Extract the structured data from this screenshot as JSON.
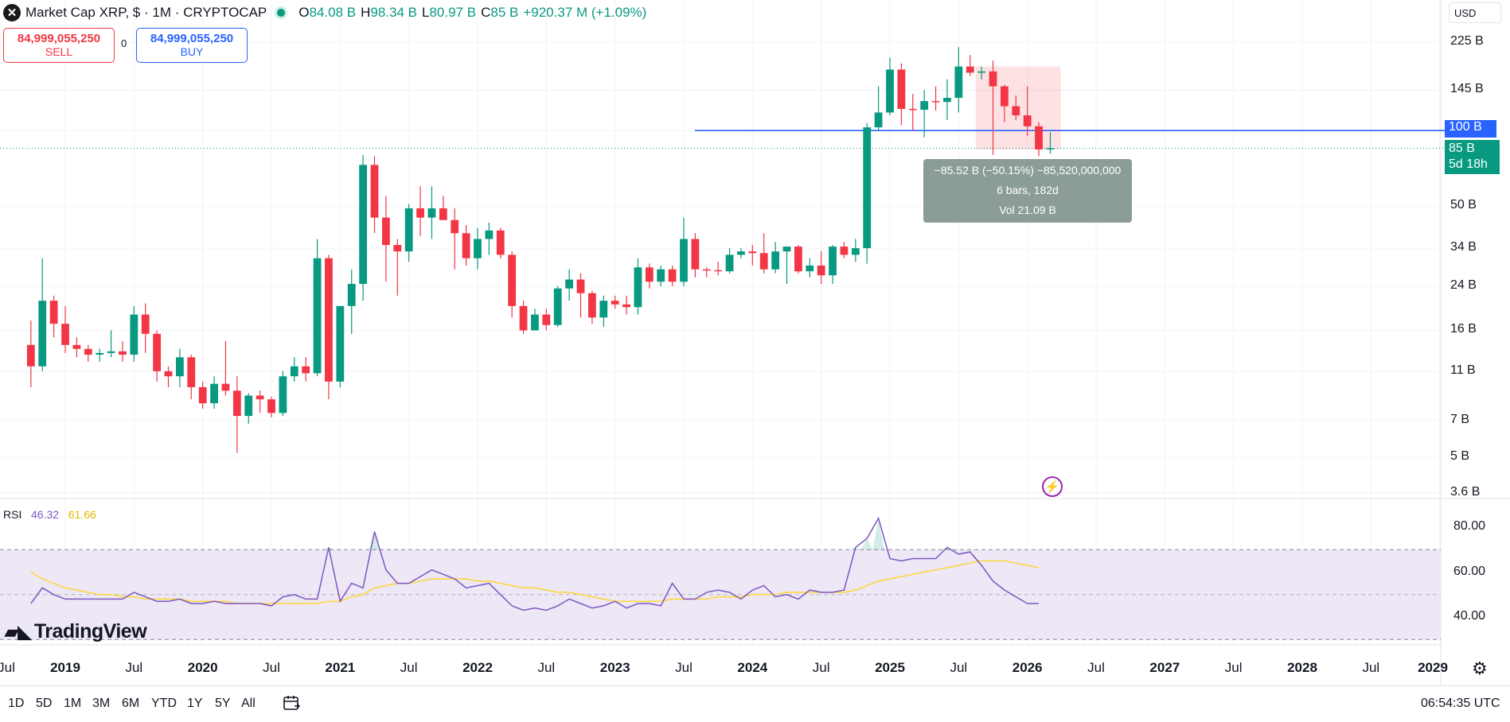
{
  "header": {
    "logo_glyph": "✕",
    "title": "Market Cap XRP, $ · 1M · CRYPTOCAP",
    "ohlc": [
      {
        "label": "O",
        "value": "84.08 B"
      },
      {
        "label": "H",
        "value": "98.34 B"
      },
      {
        "label": "L",
        "value": "80.97 B"
      },
      {
        "label": "C",
        "value": "85 B"
      }
    ],
    "change": "+920.37 M (+1.09%)",
    "currency": "USD"
  },
  "trade": {
    "sell_price": "84,999,055,250",
    "sell_label": "SELL",
    "buy_price": "84,999,055,250",
    "buy_label": "BUY",
    "spread": "0"
  },
  "measure": {
    "line1": "−85.52 B (−50.15%) −85,520,000,000",
    "line2": "6 bars, 182d",
    "line3": "Vol 21.09 B"
  },
  "price_axis": {
    "labels": [
      "225 B",
      "145 B",
      "50 B",
      "34 B",
      "24 B",
      "16 B",
      "11 B",
      "7 B",
      "5 B",
      "3.6 B"
    ],
    "level_tag": "100 B",
    "last_tag": "85 B",
    "countdown": "5d 18h"
  },
  "rsi": {
    "label": "RSI",
    "value": "46.32",
    "ma_value": "61.66",
    "axis": [
      "80.00",
      "60.00",
      "40.00"
    ],
    "upper_band": 70,
    "lower_band": 30,
    "mid_band": 50
  },
  "time_axis": [
    {
      "text": "Jul",
      "bold": false
    },
    {
      "text": "2019",
      "bold": true
    },
    {
      "text": "Jul",
      "bold": false
    },
    {
      "text": "2020",
      "bold": true
    },
    {
      "text": "Jul",
      "bold": false
    },
    {
      "text": "2021",
      "bold": true
    },
    {
      "text": "Jul",
      "bold": false
    },
    {
      "text": "2022",
      "bold": true
    },
    {
      "text": "Jul",
      "bold": false
    },
    {
      "text": "2023",
      "bold": true
    },
    {
      "text": "Jul",
      "bold": false
    },
    {
      "text": "2024",
      "bold": true
    },
    {
      "text": "Jul",
      "bold": false
    },
    {
      "text": "2025",
      "bold": true
    },
    {
      "text": "Jul",
      "bold": false
    },
    {
      "text": "2026",
      "bold": true
    },
    {
      "text": "Jul",
      "bold": false
    },
    {
      "text": "2027",
      "bold": true
    },
    {
      "text": "Jul",
      "bold": false
    },
    {
      "text": "2028",
      "bold": true
    },
    {
      "text": "Jul",
      "bold": false
    },
    {
      "text": "2029",
      "bold": true
    }
  ],
  "branding": "TradingView",
  "ranges": [
    "1D",
    "5D",
    "1M",
    "3M",
    "6M",
    "YTD",
    "1Y",
    "5Y",
    "All"
  ],
  "clock": "06:54:35 UTC",
  "colors": {
    "up": "#089981",
    "down": "#f23645",
    "rsi_line": "#7e57c2",
    "rsi_ma": "#fdd835",
    "level_line": "#2962ff",
    "rsi_band": "#ede7f6"
  },
  "chart_data": {
    "type": "candlestick",
    "interval": "1M",
    "scale": "log",
    "ylim_billions": [
      3.6,
      225
    ],
    "horizontal_line": 100,
    "candles_billions": [
      {
        "t": "2018-10",
        "o": 14,
        "h": 17.5,
        "l": 9.5,
        "c": 11.5
      },
      {
        "t": "2018-11",
        "o": 11.5,
        "h": 31,
        "l": 11,
        "c": 21
      },
      {
        "t": "2018-12",
        "o": 21,
        "h": 22,
        "l": 15,
        "c": 17
      },
      {
        "t": "2019-01",
        "o": 17,
        "h": 20,
        "l": 13,
        "c": 14
      },
      {
        "t": "2019-02",
        "o": 14,
        "h": 15,
        "l": 12.5,
        "c": 13.5
      },
      {
        "t": "2019-03",
        "o": 13.5,
        "h": 14,
        "l": 12,
        "c": 12.8
      },
      {
        "t": "2019-04",
        "o": 12.8,
        "h": 13.5,
        "l": 12,
        "c": 13
      },
      {
        "t": "2019-05",
        "o": 13,
        "h": 16,
        "l": 12.5,
        "c": 13.2
      },
      {
        "t": "2019-06",
        "o": 13.2,
        "h": 14.5,
        "l": 12,
        "c": 12.8
      },
      {
        "t": "2019-07",
        "o": 12.8,
        "h": 20,
        "l": 12,
        "c": 18.5
      },
      {
        "t": "2019-08",
        "o": 18.5,
        "h": 20.5,
        "l": 13,
        "c": 15.5
      },
      {
        "t": "2019-09",
        "o": 15.5,
        "h": 16,
        "l": 10,
        "c": 11
      },
      {
        "t": "2019-10",
        "o": 11,
        "h": 11.5,
        "l": 9.5,
        "c": 10.5
      },
      {
        "t": "2019-11",
        "o": 10.5,
        "h": 13.5,
        "l": 9.5,
        "c": 12.5
      },
      {
        "t": "2019-12",
        "o": 12.5,
        "h": 12.8,
        "l": 8.5,
        "c": 9.5
      },
      {
        "t": "2020-01",
        "o": 9.5,
        "h": 10,
        "l": 7.8,
        "c": 8.2
      },
      {
        "t": "2020-02",
        "o": 8.2,
        "h": 10.5,
        "l": 7.8,
        "c": 9.8
      },
      {
        "t": "2020-03",
        "o": 9.8,
        "h": 14.5,
        "l": 8.8,
        "c": 9.2
      },
      {
        "t": "2020-04",
        "o": 9.2,
        "h": 10.5,
        "l": 5.2,
        "c": 7.3
      },
      {
        "t": "2020-05",
        "o": 7.3,
        "h": 9,
        "l": 6.8,
        "c": 8.8
      },
      {
        "t": "2020-06",
        "o": 8.8,
        "h": 9.2,
        "l": 7.5,
        "c": 8.5
      },
      {
        "t": "2020-07",
        "o": 8.5,
        "h": 8.7,
        "l": 7.2,
        "c": 7.5
      },
      {
        "t": "2020-08",
        "o": 7.5,
        "h": 11,
        "l": 7.3,
        "c": 10.5
      },
      {
        "t": "2020-09",
        "o": 10.5,
        "h": 12.5,
        "l": 10,
        "c": 11.5
      },
      {
        "t": "2020-10",
        "o": 11.5,
        "h": 12.5,
        "l": 10,
        "c": 10.8
      },
      {
        "t": "2020-11",
        "o": 10.8,
        "h": 37,
        "l": 10.5,
        "c": 31
      },
      {
        "t": "2020-12",
        "o": 31,
        "h": 32,
        "l": 8.5,
        "c": 10
      },
      {
        "t": "2021-01",
        "o": 10,
        "h": 14.5,
        "l": 9.5,
        "c": 20
      },
      {
        "t": "2021-02",
        "o": 20,
        "h": 28,
        "l": 15.5,
        "c": 24.5
      },
      {
        "t": "2021-03",
        "o": 24.5,
        "h": 80,
        "l": 21,
        "c": 73
      },
      {
        "t": "2021-04",
        "o": 73,
        "h": 79,
        "l": 39,
        "c": 45
      },
      {
        "t": "2021-05",
        "o": 45,
        "h": 55,
        "l": 25,
        "c": 35
      },
      {
        "t": "2021-06",
        "o": 35,
        "h": 37,
        "l": 22,
        "c": 33
      },
      {
        "t": "2021-07",
        "o": 33,
        "h": 51,
        "l": 30,
        "c": 49
      },
      {
        "t": "2021-08",
        "o": 49,
        "h": 60,
        "l": 38,
        "c": 45
      },
      {
        "t": "2021-09",
        "o": 45,
        "h": 60,
        "l": 37,
        "c": 49
      },
      {
        "t": "2021-10",
        "o": 49,
        "h": 55,
        "l": 46,
        "c": 44
      },
      {
        "t": "2021-11",
        "o": 44,
        "h": 49,
        "l": 28,
        "c": 39
      },
      {
        "t": "2021-12",
        "o": 39,
        "h": 42,
        "l": 29,
        "c": 31
      },
      {
        "t": "2022-01",
        "o": 31,
        "h": 41,
        "l": 28,
        "c": 37
      },
      {
        "t": "2022-02",
        "o": 37,
        "h": 43,
        "l": 32,
        "c": 40
      },
      {
        "t": "2022-03",
        "o": 40,
        "h": 41,
        "l": 31,
        "c": 32
      },
      {
        "t": "2022-04",
        "o": 32,
        "h": 33,
        "l": 18,
        "c": 20
      },
      {
        "t": "2022-05",
        "o": 20,
        "h": 21,
        "l": 15.5,
        "c": 16
      },
      {
        "t": "2022-06",
        "o": 16,
        "h": 19.5,
        "l": 16,
        "c": 18.5
      },
      {
        "t": "2022-07",
        "o": 18.5,
        "h": 19.5,
        "l": 16,
        "c": 16.8
      },
      {
        "t": "2022-08",
        "o": 16.8,
        "h": 24,
        "l": 16.5,
        "c": 23.5
      },
      {
        "t": "2022-09",
        "o": 23.5,
        "h": 28,
        "l": 21,
        "c": 25.5
      },
      {
        "t": "2022-10",
        "o": 25.5,
        "h": 27,
        "l": 18,
        "c": 22.5
      },
      {
        "t": "2022-11",
        "o": 22.5,
        "h": 23,
        "l": 17,
        "c": 18
      },
      {
        "t": "2022-12",
        "o": 18,
        "h": 22,
        "l": 16.5,
        "c": 21
      },
      {
        "t": "2023-01",
        "o": 21,
        "h": 22,
        "l": 19.5,
        "c": 20.3
      },
      {
        "t": "2023-02",
        "o": 20.3,
        "h": 22,
        "l": 18.5,
        "c": 19.8
      },
      {
        "t": "2023-03",
        "o": 19.8,
        "h": 31,
        "l": 18.5,
        "c": 28.5
      },
      {
        "t": "2023-04",
        "o": 28.5,
        "h": 29.5,
        "l": 23.5,
        "c": 25
      },
      {
        "t": "2023-05",
        "o": 25,
        "h": 29,
        "l": 24,
        "c": 28
      },
      {
        "t": "2023-06",
        "o": 28,
        "h": 29,
        "l": 24,
        "c": 25
      },
      {
        "t": "2023-07",
        "o": 25,
        "h": 45,
        "l": 24,
        "c": 37
      },
      {
        "t": "2023-08",
        "o": 37,
        "h": 39,
        "l": 26,
        "c": 28
      },
      {
        "t": "2023-09",
        "o": 28,
        "h": 28.5,
        "l": 26,
        "c": 27.8
      },
      {
        "t": "2023-10",
        "o": 27.8,
        "h": 30,
        "l": 26.5,
        "c": 27.5
      },
      {
        "t": "2023-11",
        "o": 27.5,
        "h": 34,
        "l": 27,
        "c": 32
      },
      {
        "t": "2023-12",
        "o": 32,
        "h": 34,
        "l": 31,
        "c": 33
      },
      {
        "t": "2024-01",
        "o": 33,
        "h": 35,
        "l": 29,
        "c": 32.5
      },
      {
        "t": "2024-02",
        "o": 32.5,
        "h": 39,
        "l": 27,
        "c": 28
      },
      {
        "t": "2024-03",
        "o": 28,
        "h": 36,
        "l": 27,
        "c": 33
      },
      {
        "t": "2024-04",
        "o": 33,
        "h": 34,
        "l": 24.5,
        "c": 34.5
      },
      {
        "t": "2024-05",
        "o": 34.5,
        "h": 35,
        "l": 27,
        "c": 27.5
      },
      {
        "t": "2024-06",
        "o": 27.5,
        "h": 31,
        "l": 26,
        "c": 29
      },
      {
        "t": "2024-07",
        "o": 29,
        "h": 33,
        "l": 24.5,
        "c": 26.5
      },
      {
        "t": "2024-08",
        "o": 26.5,
        "h": 35,
        "l": 24.5,
        "c": 34.5
      },
      {
        "t": "2024-09",
        "o": 34.5,
        "h": 36,
        "l": 31,
        "c": 32
      },
      {
        "t": "2024-10",
        "o": 32,
        "h": 37,
        "l": 30,
        "c": 34
      },
      {
        "t": "2024-11",
        "o": 34,
        "h": 107,
        "l": 29.5,
        "c": 103
      },
      {
        "t": "2024-12",
        "o": 103,
        "h": 150,
        "l": 100,
        "c": 118
      },
      {
        "t": "2025-01",
        "o": 118,
        "h": 195,
        "l": 115,
        "c": 175
      },
      {
        "t": "2025-02",
        "o": 175,
        "h": 185,
        "l": 105,
        "c": 122
      },
      {
        "t": "2025-03",
        "o": 122,
        "h": 140,
        "l": 100,
        "c": 121
      },
      {
        "t": "2025-04",
        "o": 121,
        "h": 145,
        "l": 94,
        "c": 131
      },
      {
        "t": "2025-05",
        "o": 131,
        "h": 150,
        "l": 120,
        "c": 130
      },
      {
        "t": "2025-06",
        "o": 130,
        "h": 160,
        "l": 110,
        "c": 135
      },
      {
        "t": "2025-07",
        "o": 135,
        "h": 215,
        "l": 118,
        "c": 180
      },
      {
        "t": "2025-08",
        "o": 180,
        "h": 200,
        "l": 165,
        "c": 170
      },
      {
        "t": "2025-09",
        "o": 170,
        "h": 180,
        "l": 160,
        "c": 172
      },
      {
        "t": "2025-10",
        "o": 172,
        "h": 190,
        "l": 80,
        "c": 150
      },
      {
        "t": "2025-11",
        "o": 150,
        "h": 152,
        "l": 108,
        "c": 125
      },
      {
        "t": "2025-12",
        "o": 125,
        "h": 138,
        "l": 110,
        "c": 115
      },
      {
        "t": "2026-01",
        "o": 115,
        "h": 150,
        "l": 95,
        "c": 104
      },
      {
        "t": "2026-02",
        "o": 104,
        "h": 108,
        "l": 79,
        "c": 84.08
      },
      {
        "t": "2026-03",
        "o": 84.08,
        "h": 98.34,
        "l": 80.97,
        "c": 85
      }
    ],
    "rsi_values": [
      46,
      53,
      50,
      48,
      48,
      48,
      48,
      48,
      48,
      51,
      49,
      47,
      47,
      48,
      46,
      46,
      47,
      46,
      46,
      46,
      46,
      45,
      49,
      50,
      48,
      48,
      71,
      47,
      55,
      53,
      78,
      61,
      55,
      55,
      58,
      61,
      59,
      57,
      53,
      54,
      55,
      50,
      45,
      43,
      44,
      43,
      45,
      48,
      46,
      44,
      45,
      47,
      44,
      46,
      46,
      45,
      55,
      48,
      48,
      51,
      52,
      51,
      48,
      52,
      54,
      49,
      50,
      48,
      52,
      51,
      51,
      52,
      71,
      75,
      84,
      66,
      65,
      66,
      66,
      66,
      71,
      68,
      69,
      63,
      56,
      52,
      49,
      46,
      46
    ],
    "rsi_ma_values": [
      60,
      57,
      55,
      53,
      52,
      51,
      50,
      50,
      49,
      49,
      48,
      48,
      48,
      48,
      47,
      47,
      47,
      47,
      46,
      46,
      46,
      46,
      46,
      46,
      46,
      46,
      47,
      47,
      49,
      50,
      53,
      54,
      55,
      55,
      56,
      57,
      57,
      57,
      57,
      56,
      56,
      55,
      54,
      53,
      53,
      52,
      51,
      51,
      50,
      49,
      48,
      47,
      47,
      47,
      47,
      47,
      48,
      48,
      48,
      48,
      49,
      49,
      49,
      50,
      50,
      50,
      51,
      51,
      51,
      51,
      51,
      51,
      52,
      54,
      56,
      57,
      58,
      59,
      60,
      61,
      62,
      63,
      64,
      65,
      65,
      65,
      64,
      63,
      62
    ]
  }
}
